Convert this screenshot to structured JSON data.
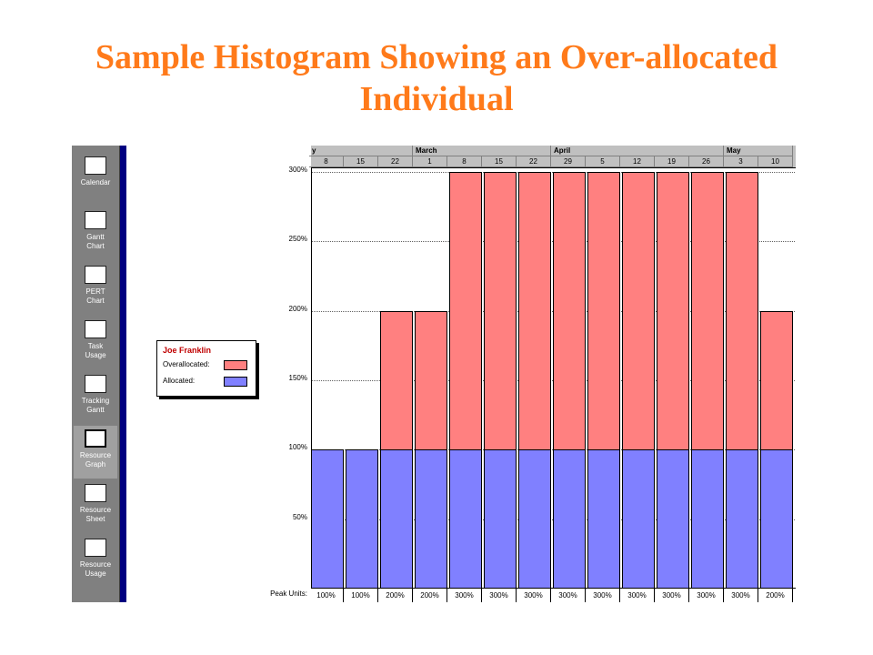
{
  "slide": {
    "title_line1": "Sample Histogram Showing an Over-allocated",
    "title_line2": "Individual"
  },
  "view_bar": {
    "items": [
      {
        "label": "Calendar",
        "icon": "calendar-icon",
        "active": false
      },
      {
        "label": "Gantt\nChart",
        "icon": "gantt-chart-icon",
        "active": false
      },
      {
        "label": "PERT\nChart",
        "icon": "pert-chart-icon",
        "active": false
      },
      {
        "label": "Task\nUsage",
        "icon": "task-usage-icon",
        "active": false
      },
      {
        "label": "Tracking\nGantt",
        "icon": "tracking-gantt-icon",
        "active": false
      },
      {
        "label": "Resource\nGraph",
        "icon": "resource-graph-icon",
        "active": true
      },
      {
        "label": "Resource\nSheet",
        "icon": "resource-sheet-icon",
        "active": false
      },
      {
        "label": "Resource\nUsage",
        "icon": "resource-usage-icon",
        "active": false
      }
    ]
  },
  "legend": {
    "resource_name": "Joe Franklin",
    "overallocated_label": "Overallocated:",
    "allocated_label": "Allocated:",
    "overallocated_color": "#ff8080",
    "allocated_color": "#8080ff"
  },
  "timescale": {
    "months": [
      "y",
      "March",
      "April",
      "May"
    ],
    "days": [
      "8",
      "15",
      "22",
      "1",
      "8",
      "15",
      "22",
      "29",
      "5",
      "12",
      "19",
      "26",
      "3",
      "10"
    ]
  },
  "peak_units_label": "Peak Units:",
  "chart_data": {
    "type": "bar",
    "categories": [
      "8",
      "15",
      "22",
      "1",
      "8",
      "15",
      "22",
      "29",
      "5",
      "12",
      "19",
      "26",
      "3",
      "10"
    ],
    "series": [
      {
        "name": "Allocated",
        "values": [
          100,
          100,
          100,
          100,
          100,
          100,
          100,
          100,
          100,
          100,
          100,
          100,
          100,
          100
        ]
      },
      {
        "name": "Overallocated",
        "values": [
          0,
          0,
          100,
          100,
          200,
          200,
          200,
          200,
          200,
          200,
          200,
          200,
          200,
          100
        ]
      }
    ],
    "peak_units": [
      "100%",
      "100%",
      "200%",
      "200%",
      "300%",
      "300%",
      "300%",
      "300%",
      "300%",
      "300%",
      "300%",
      "300%",
      "300%",
      "200%"
    ],
    "y_ticks": [
      "50%",
      "100%",
      "150%",
      "200%",
      "250%",
      "300%"
    ],
    "ylim": [
      0,
      300
    ],
    "stacked": true,
    "grid": true
  }
}
